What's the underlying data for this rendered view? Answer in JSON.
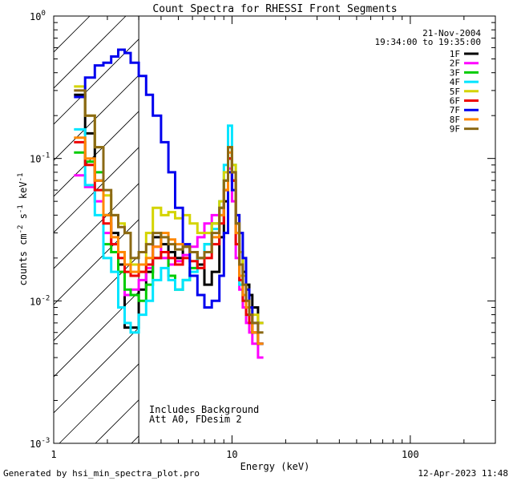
{
  "chart_data": {
    "type": "line",
    "title": "Count Spectra for RHESSI Front Segments",
    "xlabel": "Energy (keV)",
    "ylabel_parts": [
      "counts cm",
      "-2",
      " s",
      "-1",
      " keV",
      "-1"
    ],
    "x_scale": "log",
    "y_scale": "log",
    "xlim": [
      1,
      300
    ],
    "ylim": [
      0.001,
      1
    ],
    "x_ticks": [
      {
        "value": 1,
        "label": "1"
      },
      {
        "value": 10,
        "label": "10"
      },
      {
        "value": 100,
        "label": "100"
      }
    ],
    "y_ticks": [
      {
        "value": 1,
        "base": "10",
        "exp": "0"
      },
      {
        "value": 0.1,
        "base": "10",
        "exp": "-1"
      },
      {
        "value": 0.01,
        "base": "10",
        "exp": "-2"
      },
      {
        "value": 0.001,
        "base": "10",
        "exp": "-3"
      }
    ],
    "date": "21-Nov-2004",
    "time_range": "19:34:00 to 19:35:00",
    "hatched_region_max_kev": 3,
    "annotations": [
      "Includes Background",
      "Att A0, FDesim 2"
    ],
    "legend_position": "top-right",
    "energy_edges": [
      1.3,
      1.5,
      1.7,
      1.9,
      2.1,
      2.3,
      2.5,
      2.7,
      3.0,
      3.3,
      3.6,
      4.0,
      4.4,
      4.8,
      5.3,
      5.8,
      6.4,
      7.0,
      7.7,
      8.5,
      9.0,
      9.5,
      10.0,
      10.5,
      11.0,
      11.5,
      12.0,
      12.5,
      13.0,
      14.0,
      15.0
    ],
    "series": [
      {
        "name": "1F",
        "color": "#000000",
        "values": [
          0.28,
          0.15,
          0.07,
          0.04,
          0.03,
          0.018,
          0.0065,
          0.0065,
          0.012,
          0.016,
          0.028,
          0.025,
          0.022,
          0.02,
          0.024,
          0.022,
          0.018,
          0.013,
          0.016,
          0.028,
          0.05,
          0.1,
          0.07,
          0.035,
          0.022,
          0.016,
          0.013,
          0.011,
          0.009,
          0.007
        ]
      },
      {
        "name": "2F",
        "color": "#ff00ff",
        "values": [
          0.076,
          0.063,
          0.05,
          0.03,
          0.025,
          0.016,
          0.011,
          0.012,
          0.014,
          0.017,
          0.024,
          0.02,
          0.018,
          0.019,
          0.021,
          0.024,
          0.028,
          0.035,
          0.04,
          0.045,
          0.06,
          0.085,
          0.05,
          0.02,
          0.012,
          0.009,
          0.007,
          0.006,
          0.005,
          0.004
        ]
      },
      {
        "name": "3F",
        "color": "#00cc00",
        "values": [
          0.11,
          0.095,
          0.08,
          0.025,
          0.022,
          0.016,
          0.012,
          0.011,
          0.01,
          0.013,
          0.02,
          0.022,
          0.015,
          0.012,
          0.014,
          0.017,
          0.02,
          0.025,
          0.035,
          0.045,
          0.07,
          0.12,
          0.08,
          0.03,
          0.015,
          0.011,
          0.008,
          0.007,
          0.006,
          0.005
        ]
      },
      {
        "name": "4F",
        "color": "#00e5ff",
        "values": [
          0.16,
          0.065,
          0.04,
          0.02,
          0.016,
          0.009,
          0.007,
          0.006,
          0.008,
          0.01,
          0.014,
          0.017,
          0.014,
          0.012,
          0.014,
          0.016,
          0.02,
          0.025,
          0.032,
          0.05,
          0.09,
          0.17,
          0.09,
          0.03,
          0.013,
          0.01,
          0.008,
          0.007,
          0.006,
          0.005
        ]
      },
      {
        "name": "5F",
        "color": "#d4d400",
        "values": [
          0.32,
          0.2,
          0.12,
          0.055,
          0.04,
          0.035,
          0.03,
          0.018,
          0.016,
          0.03,
          0.045,
          0.04,
          0.042,
          0.038,
          0.04,
          0.035,
          0.03,
          0.03,
          0.035,
          0.05,
          0.08,
          0.12,
          0.09,
          0.04,
          0.022,
          0.015,
          0.012,
          0.009,
          0.008,
          0.007
        ]
      },
      {
        "name": "6F",
        "color": "#ee0000",
        "values": [
          0.13,
          0.09,
          0.06,
          0.035,
          0.025,
          0.02,
          0.016,
          0.015,
          0.016,
          0.018,
          0.02,
          0.022,
          0.02,
          0.018,
          0.02,
          0.019,
          0.017,
          0.02,
          0.025,
          0.035,
          0.06,
          0.1,
          0.07,
          0.025,
          0.014,
          0.01,
          0.008,
          0.007,
          0.006,
          0.005
        ]
      },
      {
        "name": "7F",
        "color": "#0000ee",
        "values": [
          0.27,
          0.37,
          0.45,
          0.47,
          0.52,
          0.58,
          0.55,
          0.47,
          0.38,
          0.28,
          0.2,
          0.13,
          0.08,
          0.045,
          0.025,
          0.015,
          0.011,
          0.009,
          0.01,
          0.015,
          0.03,
          0.08,
          0.06,
          0.04,
          0.03,
          0.02,
          0.012,
          0.009,
          0.007,
          0.005
        ]
      },
      {
        "name": "8F",
        "color": "#ff8800",
        "values": [
          0.14,
          0.1,
          0.07,
          0.04,
          0.028,
          0.022,
          0.018,
          0.016,
          0.018,
          0.02,
          0.024,
          0.03,
          0.027,
          0.025,
          0.024,
          0.022,
          0.02,
          0.022,
          0.028,
          0.04,
          0.06,
          0.11,
          0.08,
          0.03,
          0.015,
          0.011,
          0.009,
          0.008,
          0.006,
          0.005
        ]
      },
      {
        "name": "9F",
        "color": "#8b6914",
        "values": [
          0.3,
          0.2,
          0.12,
          0.06,
          0.04,
          0.033,
          0.03,
          0.02,
          0.022,
          0.025,
          0.03,
          0.028,
          0.025,
          0.023,
          0.024,
          0.022,
          0.02,
          0.022,
          0.03,
          0.045,
          0.07,
          0.12,
          0.08,
          0.035,
          0.018,
          0.013,
          0.01,
          0.008,
          0.007,
          0.006
        ]
      }
    ]
  },
  "footer": {
    "left": "Generated by hsi_min_spectra_plot.pro",
    "right": "12-Apr-2023 11:48"
  }
}
